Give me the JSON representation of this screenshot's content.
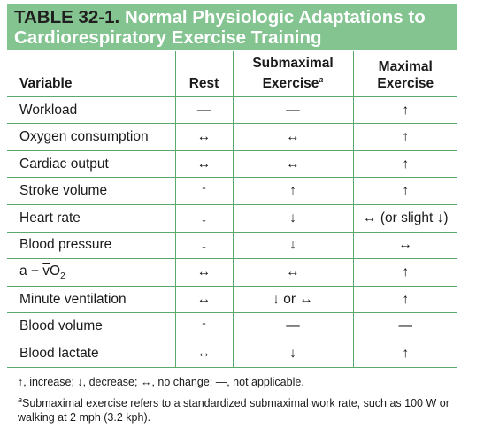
{
  "table": {
    "label": "TABLE 32-1.",
    "title": "Normal Physiologic Adaptations to Cardiorespiratory Exercise Training",
    "headers": {
      "variable": "Variable",
      "rest": "Rest",
      "submaximal": "Submaximal Exercise",
      "submaximal_mark": "a",
      "maximal": "Maximal Exercise"
    },
    "rows": [
      {
        "variable": "Workload",
        "rest": "—",
        "submaximal": "—",
        "maximal": "↑"
      },
      {
        "variable": "Oxygen consumption",
        "rest": "↔",
        "submaximal": "↔",
        "maximal": "↑"
      },
      {
        "variable": "Cardiac output",
        "rest": "↔",
        "submaximal": "↔",
        "maximal": "↑"
      },
      {
        "variable": "Stroke volume",
        "rest": "↑",
        "submaximal": "↑",
        "maximal": "↑"
      },
      {
        "variable": "Heart rate",
        "rest": "↓",
        "submaximal": "↓",
        "maximal": "↔ (or slight ↓)"
      },
      {
        "variable": "Blood pressure",
        "rest": "↓",
        "submaximal": "↓",
        "maximal": "↔"
      },
      {
        "variable": "a − v̄O2",
        "rest": "↔",
        "submaximal": "↔",
        "maximal": "↑"
      },
      {
        "variable": "Minute ventilation",
        "rest": "↔",
        "submaximal": "↓ or ↔",
        "maximal": "↑"
      },
      {
        "variable": "Blood volume",
        "rest": "↑",
        "submaximal": "—",
        "maximal": "—"
      },
      {
        "variable": "Blood lactate",
        "rest": "↔",
        "submaximal": "↓",
        "maximal": "↑"
      }
    ],
    "vo2_parts": {
      "prefix": "a − ",
      "v": "v",
      "o": "O",
      "sub": "2"
    }
  },
  "notes": {
    "legend": "↑, increase; ↓, decrease; ↔, no change; —, not applicable.",
    "footnote_mark": "a",
    "footnote": "Submaximal exercise refers to a standardized submaximal work rate, such as 100 W or walking at 2 mph (3.2 kph)."
  },
  "colors": {
    "title_background": "#84c491",
    "title_text": "#ffffff",
    "rule": "#5aa86a"
  }
}
